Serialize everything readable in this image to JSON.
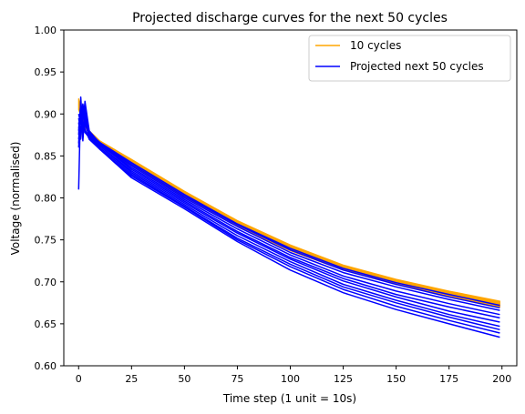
{
  "chart_data": {
    "type": "line",
    "title": "Projected discharge curves for the next 50 cycles",
    "xlabel": "Time step (1 unit = 10s)",
    "ylabel": "Voltage (normalised)",
    "xlim": [
      -7,
      207
    ],
    "ylim": [
      0.6,
      1.0
    ],
    "xticks": [
      0,
      25,
      50,
      75,
      100,
      125,
      150,
      175,
      200
    ],
    "yticks": [
      "0.60",
      "0.65",
      "0.70",
      "0.75",
      "0.80",
      "0.85",
      "0.90",
      "0.95",
      "1.00"
    ],
    "legend": {
      "position": "upper-right",
      "entries": [
        "10 cycles",
        "Projected next 50 cycles"
      ]
    },
    "colors": {
      "10 cycles": "#ffa500",
      "Projected next 50 cycles": "#0000ff"
    },
    "series": [
      {
        "name": "10 cycles",
        "color": "#ffa500",
        "band": true,
        "x": [
          0,
          3,
          5,
          10,
          25,
          50,
          75,
          100,
          125,
          150,
          175,
          199
        ],
        "upper": [
          0.918,
          0.895,
          0.88,
          0.868,
          0.846,
          0.808,
          0.773,
          0.744,
          0.72,
          0.703,
          0.689,
          0.677
        ],
        "lower": [
          0.905,
          0.885,
          0.876,
          0.862,
          0.838,
          0.8,
          0.766,
          0.737,
          0.714,
          0.697,
          0.683,
          0.67
        ]
      },
      {
        "name": "Projected next 50 cycles",
        "color": "#0000ff",
        "x": [
          0,
          1,
          2,
          3,
          5,
          10,
          25,
          50,
          75,
          100,
          125,
          150,
          175,
          199
        ],
        "curves": [
          [
            0.81,
            0.92,
            0.88,
            0.9,
            0.876,
            0.866,
            0.842,
            0.804,
            0.769,
            0.74,
            0.716,
            0.699,
            0.685,
            0.672
          ],
          [
            0.9,
            0.888,
            0.912,
            0.895,
            0.878,
            0.866,
            0.84,
            0.802,
            0.768,
            0.738,
            0.714,
            0.697,
            0.682,
            0.669
          ],
          [
            0.86,
            0.905,
            0.875,
            0.915,
            0.88,
            0.865,
            0.838,
            0.8,
            0.766,
            0.735,
            0.711,
            0.694,
            0.679,
            0.666
          ],
          [
            0.89,
            0.87,
            0.908,
            0.888,
            0.874,
            0.864,
            0.836,
            0.798,
            0.763,
            0.732,
            0.707,
            0.689,
            0.674,
            0.661
          ],
          [
            0.88,
            0.912,
            0.868,
            0.905,
            0.876,
            0.864,
            0.834,
            0.796,
            0.76,
            0.729,
            0.704,
            0.685,
            0.67,
            0.657
          ],
          [
            0.87,
            0.895,
            0.91,
            0.878,
            0.872,
            0.862,
            0.832,
            0.794,
            0.758,
            0.727,
            0.701,
            0.682,
            0.665,
            0.652
          ],
          [
            0.895,
            0.88,
            0.898,
            0.912,
            0.874,
            0.862,
            0.83,
            0.792,
            0.755,
            0.724,
            0.697,
            0.678,
            0.661,
            0.647
          ],
          [
            0.865,
            0.905,
            0.885,
            0.893,
            0.872,
            0.86,
            0.828,
            0.79,
            0.752,
            0.721,
            0.694,
            0.675,
            0.658,
            0.643
          ],
          [
            0.885,
            0.875,
            0.902,
            0.882,
            0.87,
            0.858,
            0.826,
            0.789,
            0.75,
            0.718,
            0.691,
            0.671,
            0.654,
            0.639
          ],
          [
            0.875,
            0.915,
            0.872,
            0.897,
            0.87,
            0.858,
            0.824,
            0.787,
            0.748,
            0.714,
            0.687,
            0.667,
            0.65,
            0.634
          ]
        ]
      }
    ]
  }
}
